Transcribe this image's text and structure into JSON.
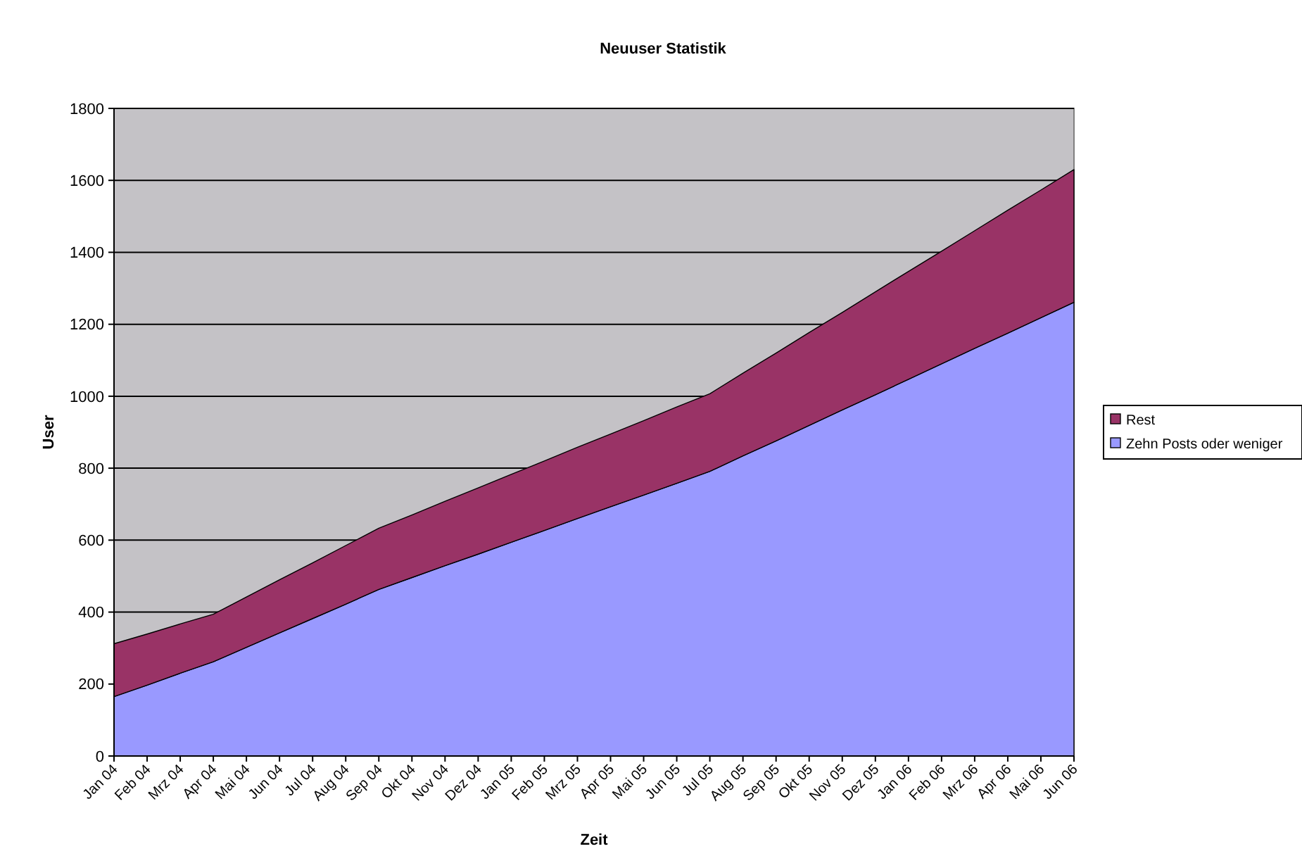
{
  "chart_data": {
    "type": "area",
    "title": "Neuuser Statistik",
    "xlabel": "Zeit",
    "ylabel": "User",
    "categories": [
      "Jan 04",
      "Feb 04",
      "Mrz 04",
      "Apr 04",
      "Mai 04",
      "Jun 04",
      "Jul 04",
      "Aug 04",
      "Sep 04",
      "Okt 04",
      "Nov 04",
      "Dez 04",
      "Jan 05",
      "Feb 05",
      "Mrz 05",
      "Apr 05",
      "Mai 05",
      "Jun 05",
      "Jul 05",
      "Aug 05",
      "Sep 05",
      "Okt 05",
      "Nov 05",
      "Dez 05",
      "Jan 06",
      "Feb 06",
      "Mrz 06",
      "Apr 06",
      "Mai 06",
      "Jun 06"
    ],
    "stacked": true,
    "series": [
      {
        "name": "Zehn Posts oder weniger",
        "color": "#9999ff",
        "values": [
          165,
          197,
          230,
          262,
          302,
          342,
          382,
          422,
          463,
          496,
          529,
          561,
          594,
          627,
          660,
          693,
          725,
          758,
          791,
          834,
          876,
          919,
          962,
          1004,
          1047,
          1090,
          1133,
          1175,
          1218,
          1261
        ]
      },
      {
        "name": "Rest",
        "color": "#993366",
        "values": [
          147,
          142,
          137,
          132,
          140,
          148,
          155,
          163,
          170,
          174,
          179,
          184,
          189,
          193,
          198,
          202,
          207,
          212,
          216,
          230,
          244,
          258,
          271,
          286,
          300,
          313,
          327,
          342,
          355,
          369
        ]
      }
    ],
    "ylim": [
      0,
      1800
    ],
    "yticks": [
      0,
      200,
      400,
      600,
      800,
      1000,
      1200,
      1400,
      1600,
      1800
    ],
    "grid": "y",
    "legend": "right"
  }
}
